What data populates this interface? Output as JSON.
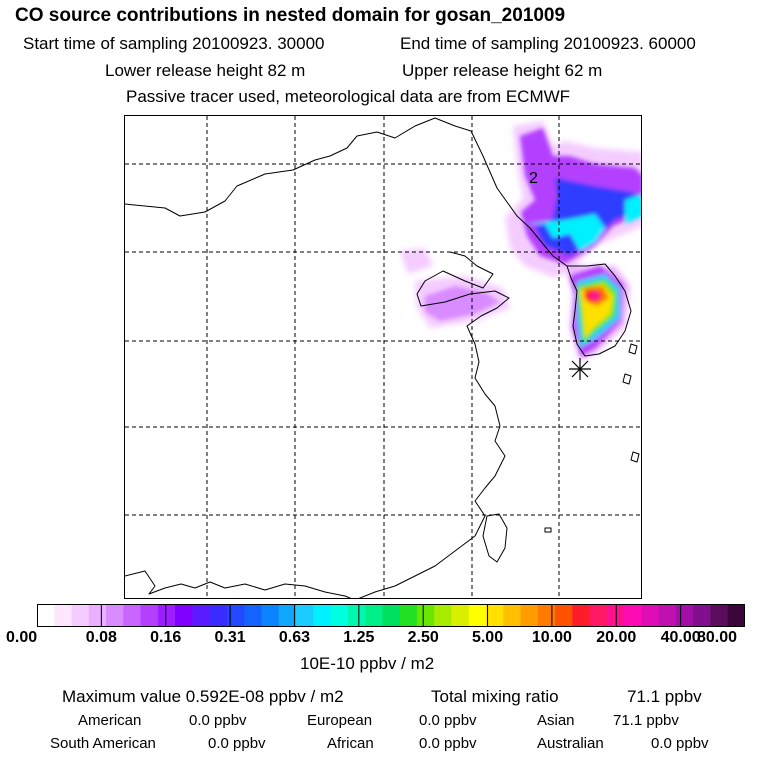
{
  "header": {
    "title": "CO  source contributions in nested domain for gosan_201009",
    "start_time": "Start time of sampling 20100923. 30000",
    "end_time": "End time of sampling 20100923. 60000",
    "lower_release": "Lower release height   82 m",
    "upper_release": "Upper release height   62 m",
    "tracer_note": "Passive tracer used, meteorological data are from ECMWF"
  },
  "map": {
    "day_label": "2",
    "receptor_marker": "asterisk"
  },
  "chart_data": {
    "type": "heatmap",
    "title": "CO  source contributions in nested domain for gosan_201009",
    "colorbar": {
      "unit_label": "10E-10 ppbv / m2",
      "tick_labels": [
        "0.00",
        "0.08",
        "0.16",
        "0.31",
        "0.63",
        "1.25",
        "2.50",
        "5.00",
        "10.00",
        "20.00",
        "40.00",
        "80.00"
      ],
      "colors": [
        "#ffffff",
        "#fbe8ff",
        "#f4ccff",
        "#eab0ff",
        "#d98cff",
        "#c865ff",
        "#b340ff",
        "#9d1fff",
        "#7f00ff",
        "#5a1bff",
        "#3a2cff",
        "#2448ff",
        "#1463ff",
        "#0a84ff",
        "#10a8ff",
        "#1ccbff",
        "#00f0ff",
        "#00ffe0",
        "#00f7b0",
        "#00ef86",
        "#00e060",
        "#22e022",
        "#66e600",
        "#a7ec00",
        "#d8f000",
        "#ffff00",
        "#ffe000",
        "#ffc000",
        "#ff9c00",
        "#ff7a00",
        "#ff5200",
        "#ff1c2a",
        "#ff1a66",
        "#ff1090",
        "#ff0cb4",
        "#e00cb6",
        "#c010b0",
        "#a010a6",
        "#80108c",
        "#5a0d5d",
        "#3a0638"
      ]
    },
    "max_value_label": "Maximum value  0.592E-08 ppbv / m2",
    "total_mixing_ratio_label": "Total mixing ratio",
    "total_mixing_ratio": "71.1 ppbv",
    "regional_contributions": [
      {
        "region": "American",
        "value": "0.0 ppbv"
      },
      {
        "region": "European",
        "value": "0.0 ppbv"
      },
      {
        "region": "Asian",
        "value": "71.1 ppbv"
      },
      {
        "region": "South American",
        "value": "0.0 ppbv"
      },
      {
        "region": "African",
        "value": "0.0 ppbv"
      },
      {
        "region": "Australian",
        "value": "0.0 ppbv"
      }
    ]
  }
}
